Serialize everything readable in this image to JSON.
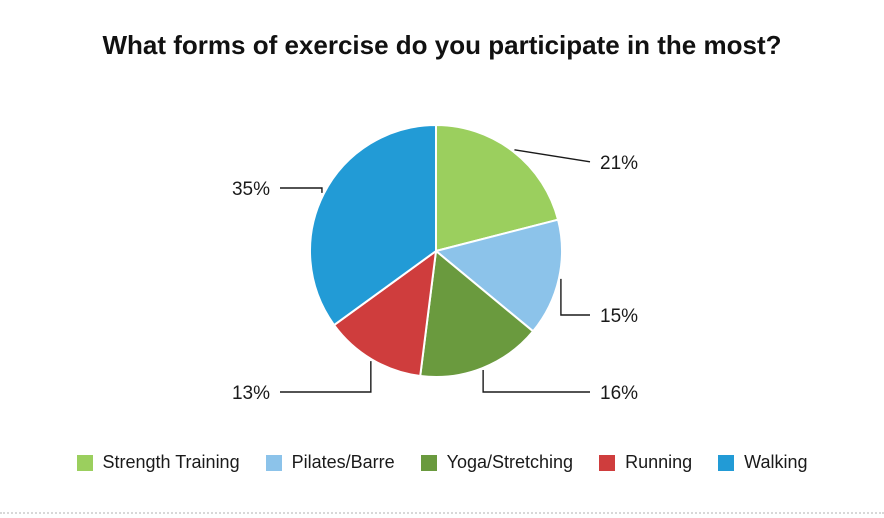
{
  "chart_data": {
    "type": "pie",
    "title": "What forms of exercise do you participate in the most?",
    "categories": [
      "Strength Training",
      "Pilates/Barre",
      "Yoga/Stretching",
      "Running",
      "Walking"
    ],
    "values": [
      21,
      15,
      16,
      13,
      35
    ],
    "labels": [
      "21%",
      "15%",
      "16%",
      "13%",
      "35%"
    ],
    "colors": [
      "#9bcf5e",
      "#8cc3ea",
      "#6a9a3e",
      "#cf3d3d",
      "#229bd6"
    ],
    "legend_position": "bottom"
  }
}
